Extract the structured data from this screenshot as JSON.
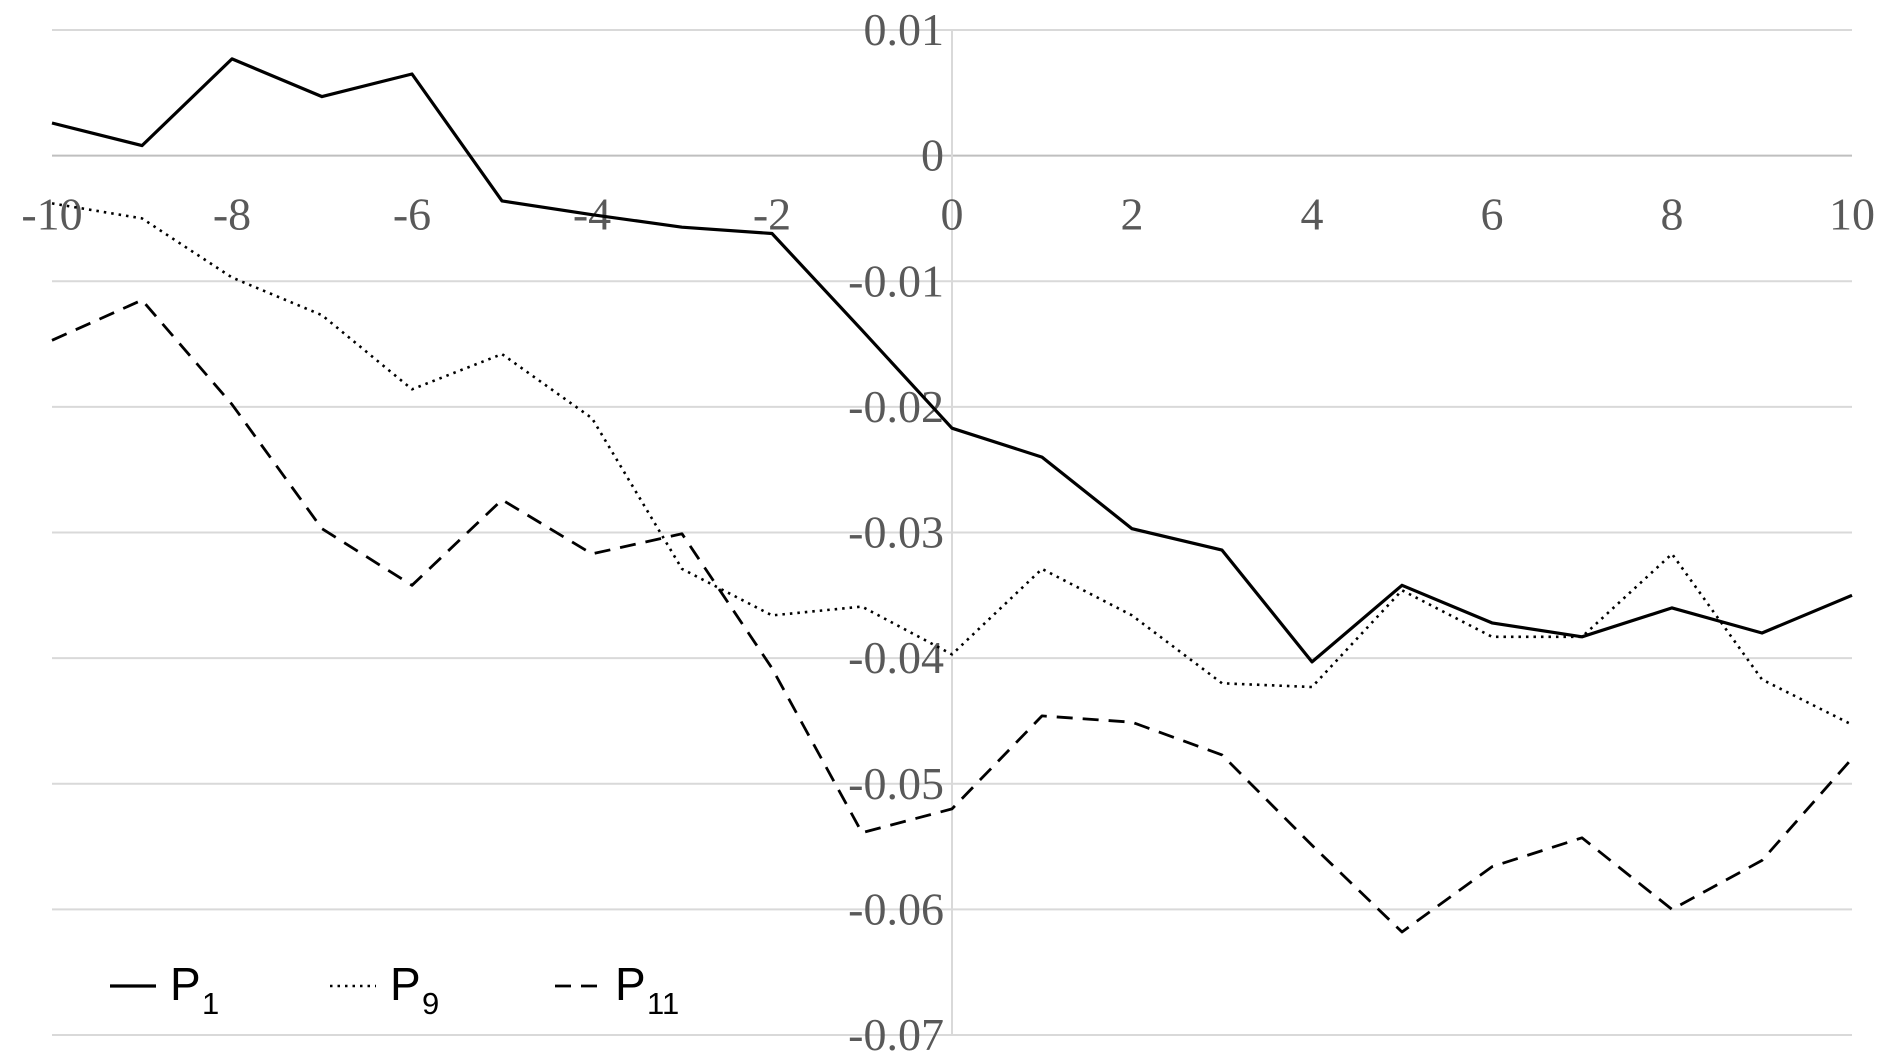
{
  "chart_data": {
    "type": "line",
    "title": "",
    "xlabel": "",
    "ylabel": "",
    "xlim": [
      -10,
      10
    ],
    "ylim": [
      -0.07,
      0.01
    ],
    "grid": true,
    "x_ticks": [
      -10,
      -8,
      -6,
      -4,
      -2,
      0,
      2,
      4,
      6,
      8,
      10
    ],
    "x_tick_labels": [
      "-10",
      "-8",
      "-6",
      "-4",
      "-2",
      "0",
      "2",
      "4",
      "6",
      "8",
      "10"
    ],
    "y_ticks": [
      0.01,
      0,
      -0.01,
      -0.02,
      -0.03,
      -0.04,
      -0.05,
      -0.06,
      -0.07
    ],
    "y_tick_labels": [
      "0.01",
      "0",
      "-0.01",
      "-0.02",
      "-0.03",
      "-0.04",
      "-0.05",
      "-0.06",
      "-0.07"
    ],
    "legend_position": "bottom-left",
    "x": [
      -10,
      -9,
      -8,
      -7,
      -6,
      -5,
      -4,
      -3,
      -2,
      -1,
      0,
      1,
      2,
      3,
      4,
      5,
      6,
      7,
      8,
      9,
      10
    ],
    "series": [
      {
        "name": "P",
        "subscript": "1",
        "style": "solid",
        "values": [
          0.0026,
          0.0008,
          0.0077,
          0.0047,
          0.0065,
          -0.0036,
          -0.0047,
          -0.0057,
          -0.0062,
          -0.0139,
          -0.0217,
          -0.024,
          -0.0297,
          -0.0314,
          -0.0403,
          -0.0342,
          -0.0372,
          -0.0383,
          -0.036,
          -0.038,
          -0.035
        ]
      },
      {
        "name": "P",
        "subscript": "9",
        "style": "dotted",
        "values": [
          -0.0038,
          -0.005,
          -0.0097,
          -0.0127,
          -0.0186,
          -0.0158,
          -0.0209,
          -0.0329,
          -0.0366,
          -0.0359,
          -0.0397,
          -0.0329,
          -0.0366,
          -0.042,
          -0.0423,
          -0.0346,
          -0.0383,
          -0.0383,
          -0.0317,
          -0.0417,
          -0.0453
        ]
      },
      {
        "name": "P",
        "subscript": "11",
        "style": "dashed",
        "values": [
          -0.0147,
          -0.0115,
          -0.0198,
          -0.0297,
          -0.0342,
          -0.0274,
          -0.0317,
          -0.0301,
          -0.0408,
          -0.0539,
          -0.052,
          -0.0446,
          -0.0451,
          -0.0477,
          -0.0549,
          -0.0618,
          -0.0566,
          -0.0543,
          -0.06,
          -0.0561,
          -0.048
        ]
      }
    ]
  }
}
